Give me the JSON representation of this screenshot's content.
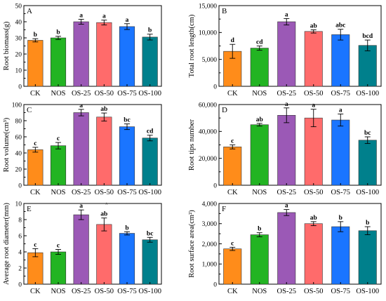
{
  "colors": [
    "#ff8c1a",
    "#22b422",
    "#9b59b6",
    "#ff6b6b",
    "#1a75ff",
    "#00808c"
  ],
  "stray_mark": "A",
  "chart_data": [
    {
      "type": "bar",
      "panel": "A",
      "categories": [
        "CK",
        "NOS",
        "OS-25",
        "OS-50",
        "OS-75",
        "OS-100"
      ],
      "ylabel": "Root biomass(g)",
      "ylim": [
        0,
        50
      ],
      "yticks": [
        0,
        10,
        20,
        30,
        40,
        50
      ],
      "ytick_labels": [
        "0",
        "10",
        "20",
        "30",
        "40",
        "50"
      ],
      "values": [
        28.5,
        30.0,
        40.0,
        39.5,
        37.0,
        30.5
      ],
      "errors": [
        1.0,
        1.0,
        1.5,
        1.5,
        1.8,
        1.8
      ],
      "letters": [
        "b",
        "b",
        "a",
        "a",
        "a",
        "b"
      ]
    },
    {
      "type": "bar",
      "panel": "B",
      "categories": [
        "CK",
        "NOS",
        "OS-25",
        "OS-50",
        "OS-75",
        "OS-100"
      ],
      "ylabel": "Total root length(cm)",
      "ylim": [
        0,
        15000
      ],
      "yticks": [
        0,
        5000,
        10000,
        15000
      ],
      "ytick_labels": [
        "0",
        "5,000",
        "10,000",
        "15,000"
      ],
      "values": [
        6500,
        7100,
        12000,
        10200,
        9600,
        7600
      ],
      "errors": [
        1300,
        400,
        600,
        300,
        1000,
        1000
      ],
      "letters": [
        "d",
        "cd",
        "a",
        "ab",
        "abc",
        "bcd"
      ]
    },
    {
      "type": "bar",
      "panel": "C",
      "categories": [
        "CK",
        "NOS",
        "OS-25",
        "OS-50",
        "OS-75",
        "OS-100"
      ],
      "ylabel": "Root volume(cm³)",
      "ylim": [
        0,
        100
      ],
      "yticks": [
        0,
        20,
        40,
        60,
        80,
        100
      ],
      "ytick_labels": [
        "0",
        "20",
        "40",
        "60",
        "80",
        "100"
      ],
      "values": [
        44,
        49,
        90,
        84.5,
        72.5,
        58.5
      ],
      "errors": [
        3,
        4,
        4,
        5,
        3.5,
        3.5
      ],
      "letters": [
        "c",
        "c",
        "a",
        "ab",
        "bc",
        "cd"
      ]
    },
    {
      "type": "bar",
      "panel": "D",
      "categories": [
        "CK",
        "NOS",
        "OS-25",
        "OS-50",
        "OS-75",
        "OS-100"
      ],
      "ylabel": "Root tips number",
      "ylim": [
        0,
        60000
      ],
      "yticks": [
        0,
        20000,
        40000,
        60000
      ],
      "ytick_labels": [
        "0",
        "20,000",
        "40,000",
        "60,000"
      ],
      "values": [
        28500,
        45000,
        52000,
        50000,
        48500,
        33500
      ],
      "errors": [
        1500,
        1000,
        5500,
        6500,
        4500,
        2500
      ],
      "letters": [
        "c",
        "ab",
        "a",
        "a",
        "a",
        "bc"
      ]
    },
    {
      "type": "bar",
      "panel": "E",
      "categories": [
        "CK",
        "NOS",
        "OS-25",
        "OS-50",
        "OS-75",
        "OS-100"
      ],
      "ylabel": "Average root diameter(mm)",
      "ylim": [
        0,
        10
      ],
      "yticks": [
        0,
        2,
        4,
        6,
        8,
        10
      ],
      "ytick_labels": [
        "0",
        "2",
        "4",
        "6",
        "8",
        "10"
      ],
      "values": [
        3.9,
        4.0,
        8.6,
        7.4,
        6.3,
        5.5
      ],
      "errors": [
        0.5,
        0.3,
        0.6,
        0.8,
        0.2,
        0.3
      ],
      "letters": [
        "c",
        "c",
        "a",
        "ab",
        "b",
        "bc"
      ]
    },
    {
      "type": "bar",
      "panel": "F",
      "categories": [
        "CK",
        "NOS",
        "OS-25",
        "OS-50",
        "OS-75",
        "OS-100"
      ],
      "ylabel": "Root surface area(cm²)",
      "ylim": [
        0,
        4000
      ],
      "yticks": [
        0,
        1000,
        2000,
        3000,
        4000
      ],
      "ytick_labels": [
        "0",
        "1,000",
        "2,000",
        "3,000",
        "4,000"
      ],
      "values": [
        1750,
        2450,
        3550,
        3000,
        2850,
        2650
      ],
      "errors": [
        80,
        100,
        150,
        100,
        250,
        200
      ],
      "letters": [
        "c",
        "b",
        "a",
        "ab",
        "b",
        "b"
      ]
    }
  ]
}
